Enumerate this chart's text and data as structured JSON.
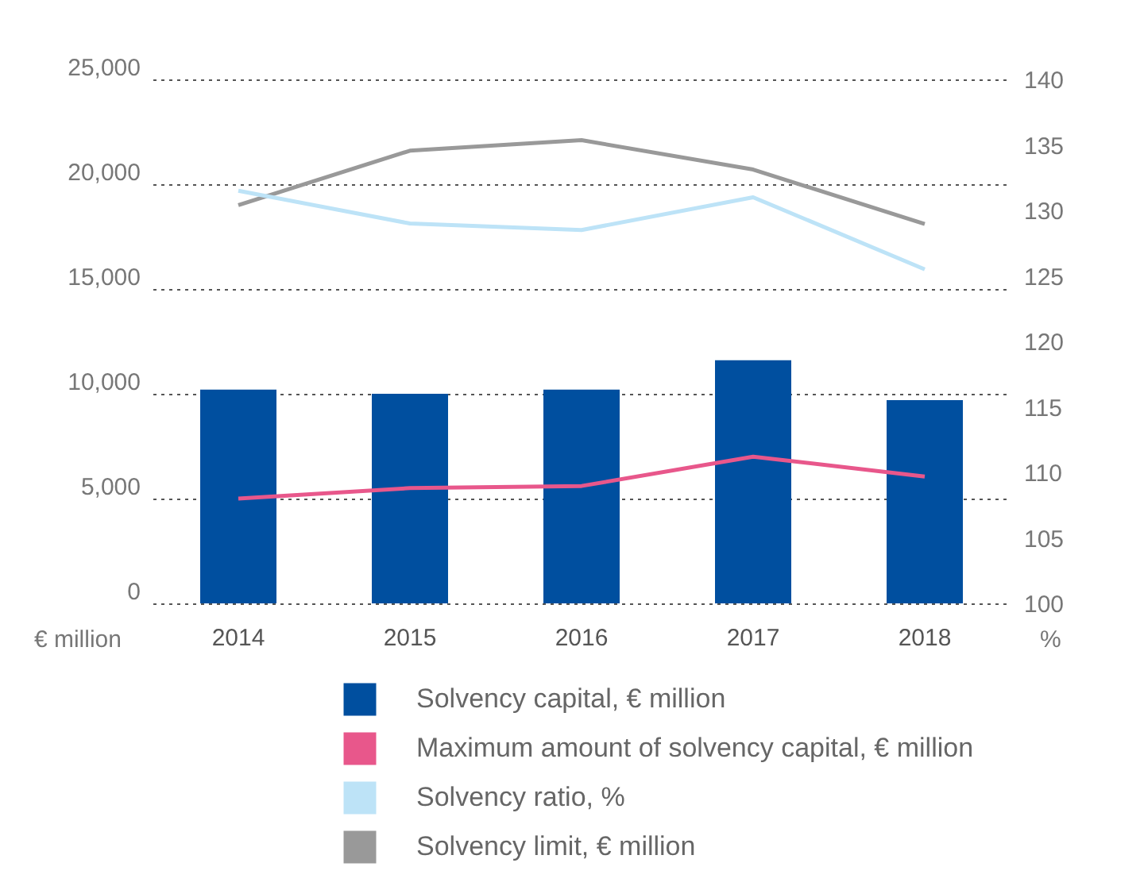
{
  "chart_data": {
    "type": "bar",
    "ylabel": "€ million",
    "y2label": "%",
    "categories": [
      "2014",
      "2015",
      "2016",
      "2017",
      "2018"
    ],
    "series": [
      {
        "name": "Solvency capital, € million",
        "color": "#004f9f",
        "values": [
          10200,
          10000,
          10200,
          11600,
          9700
        ]
      },
      {
        "name": "Maximum amount of solvency capital, € million",
        "type": "line",
        "color": "#e8578b",
        "values": [
          5000,
          5500,
          5600,
          7000,
          6050
        ]
      },
      {
        "name": "Solvency ratio, %",
        "type": "line",
        "axis": "y2",
        "color": "#bde3f7",
        "values": [
          131.5,
          129,
          128.5,
          131,
          125.5
        ]
      },
      {
        "name": "Solvency limit, € million",
        "type": "line",
        "color": "#999999",
        "values": [
          19000,
          21600,
          22100,
          20700,
          18100
        ]
      }
    ],
    "ylim": [
      0,
      25000
    ],
    "yticks": [
      {
        "value": 0,
        "label": "0"
      },
      {
        "value": 5000,
        "label": "5,000"
      },
      {
        "value": 10000,
        "label": "10,000"
      },
      {
        "value": 15000,
        "label": "15,000"
      },
      {
        "value": 20000,
        "label": "20,000"
      },
      {
        "value": 25000,
        "label": "25,000"
      }
    ],
    "y2lim": [
      100,
      140
    ],
    "y2ticks": [
      100,
      105,
      110,
      115,
      120,
      125,
      130,
      135,
      140
    ],
    "grid": "y",
    "legend": "bottom"
  }
}
